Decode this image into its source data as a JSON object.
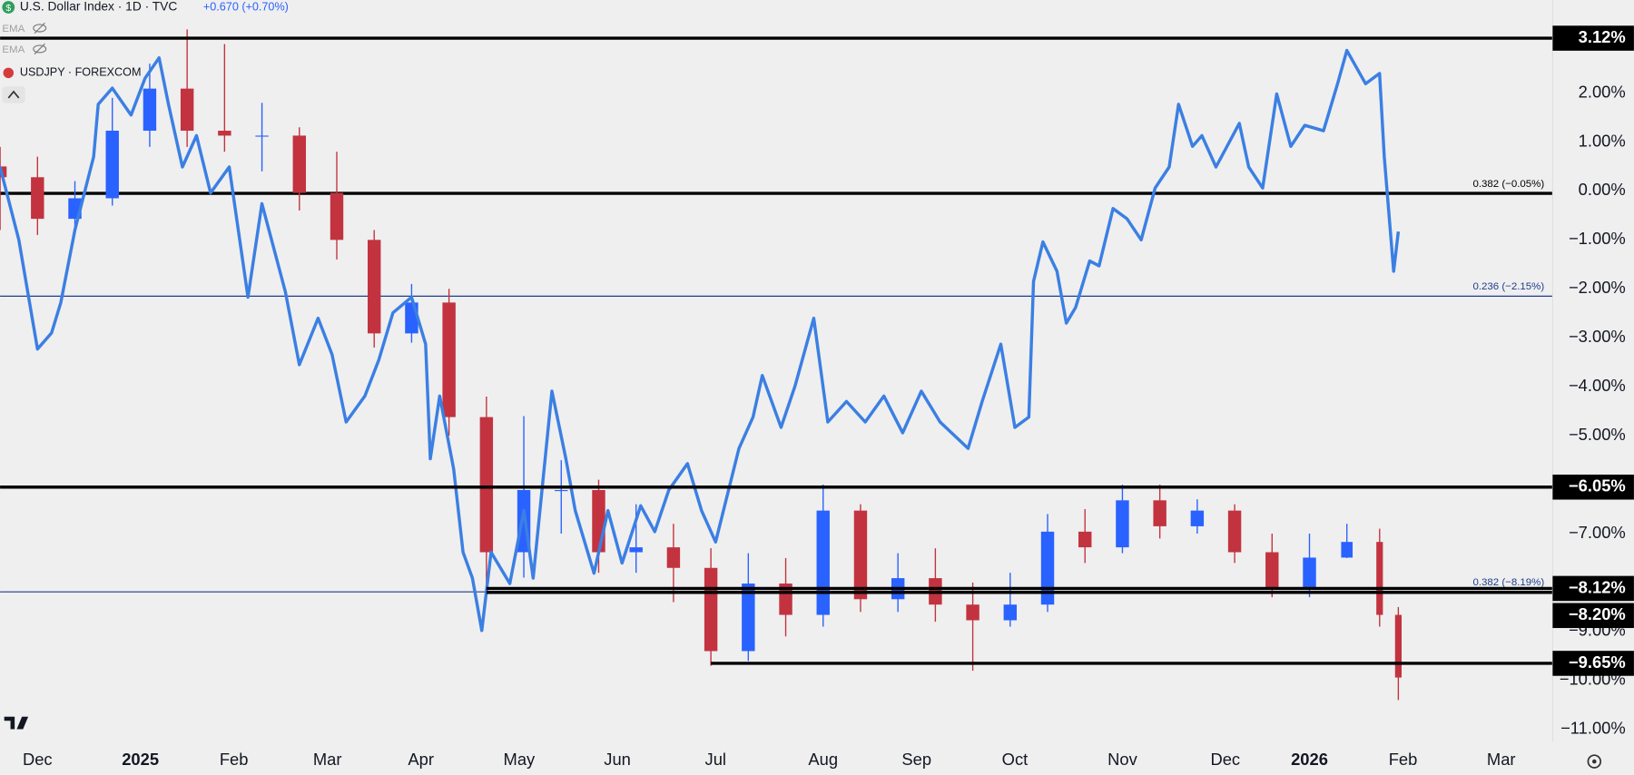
{
  "header": {
    "change": "+0.670 (+0.70%)",
    "indicators": [
      "EMA",
      "EMA"
    ]
  },
  "chart_data": {
    "type": "candlestick",
    "xlim": [
      -8,
      324
    ],
    "ylim": [
      -11.25,
      3.9
    ],
    "xticks": [
      {
        "value": 0,
        "label": "Dec"
      },
      {
        "value": 22,
        "label": "2025"
      },
      {
        "value": 42,
        "label": "Feb"
      },
      {
        "value": 62,
        "label": "Mar"
      },
      {
        "value": 82,
        "label": "Apr"
      },
      {
        "value": 103,
        "label": "May"
      },
      {
        "value": 124,
        "label": "Jun"
      },
      {
        "value": 145,
        "label": "Jul"
      },
      {
        "value": 168,
        "label": "Aug"
      },
      {
        "value": 188,
        "label": "Sep"
      },
      {
        "value": 209,
        "label": "Oct"
      },
      {
        "value": 232,
        "label": "Nov"
      },
      {
        "value": 254,
        "label": "Dec"
      },
      {
        "value": 272,
        "label": "2026"
      },
      {
        "value": 292,
        "label": "Feb"
      },
      {
        "value": 313,
        "label": "Mar"
      }
    ],
    "yticks": [
      {
        "value": 2,
        "label": "2.00%"
      },
      {
        "value": 1,
        "label": "1.00%"
      },
      {
        "value": 0,
        "label": "0.00%"
      },
      {
        "value": -1,
        "label": "−1.00%"
      },
      {
        "value": -2,
        "label": "−2.00%"
      },
      {
        "value": -3,
        "label": "−3.00%"
      },
      {
        "value": -4,
        "label": "−4.00%"
      },
      {
        "value": -5,
        "label": "−5.00%"
      },
      {
        "value": -7,
        "label": "−7.00%"
      },
      {
        "value": -9,
        "label": "−9.00%"
      },
      {
        "value": -10,
        "label": "−10.00%"
      },
      {
        "value": -11,
        "label": "−11.00%"
      }
    ],
    "series": [
      {
        "name": "U.S. Dollar Index · 1D · TVC",
        "up_color": "#2962ff",
        "down_color": "#c2333f",
        "x": [
          -8,
          0,
          8,
          16,
          24,
          32,
          40,
          48,
          56,
          64,
          72,
          80,
          88,
          96,
          104,
          112,
          120,
          128,
          136,
          144,
          152,
          160,
          168,
          176,
          184,
          192,
          200,
          208,
          216,
          224,
          232,
          240,
          248,
          256,
          264,
          272,
          280,
          287,
          291
        ],
        "open": [
          0.5,
          0.28,
          -0.57,
          -0.15,
          1.23,
          2.09,
          1.23,
          1.13,
          1.13,
          -0.04,
          -1.0,
          -2.91,
          -2.28,
          -4.62,
          -7.38,
          -6.11,
          -6.11,
          -7.38,
          -7.28,
          -7.7,
          -9.4,
          -8.02,
          -8.66,
          -6.53,
          -8.34,
          -7.91,
          -8.45,
          -8.77,
          -8.45,
          -6.96,
          -7.28,
          -6.32,
          -6.85,
          -6.53,
          -7.38,
          -8.13,
          -7.49,
          -7.17,
          -8.66
        ],
        "high": [
          0.9,
          0.7,
          0.2,
          1.9,
          2.6,
          3.3,
          3.0,
          1.8,
          1.3,
          0.8,
          -0.8,
          -1.9,
          -2.0,
          -4.2,
          -4.6,
          -5.5,
          -5.9,
          -6.4,
          -6.8,
          -7.3,
          -7.4,
          -7.5,
          -6.0,
          -6.4,
          -7.4,
          -7.3,
          -8.0,
          -7.8,
          -6.6,
          -6.5,
          -6.0,
          -6.0,
          -6.3,
          -6.4,
          -7.0,
          -7.0,
          -6.8,
          -6.9,
          -8.5
        ],
        "low": [
          -0.8,
          -0.9,
          -0.8,
          -0.3,
          0.9,
          0.9,
          0.8,
          0.4,
          -0.4,
          -1.4,
          -3.2,
          -3.1,
          -5.0,
          -8.2,
          -7.9,
          -7.0,
          -7.8,
          -7.8,
          -8.4,
          -9.7,
          -9.6,
          -9.1,
          -8.9,
          -8.6,
          -8.6,
          -8.8,
          -9.8,
          -8.9,
          -8.6,
          -7.6,
          -7.4,
          -7.1,
          -7.0,
          -7.6,
          -8.3,
          -8.3,
          -7.5,
          -8.9,
          -10.4
        ],
        "close": [
          0.28,
          -0.57,
          -0.15,
          1.23,
          2.09,
          1.23,
          1.13,
          1.13,
          -0.04,
          -1.0,
          -2.91,
          -2.28,
          -4.62,
          -7.38,
          -6.11,
          -6.11,
          -7.38,
          -7.28,
          -7.7,
          -9.4,
          -8.02,
          -8.66,
          -6.53,
          -8.34,
          -7.91,
          -8.45,
          -8.77,
          -8.45,
          -6.96,
          -7.28,
          -6.32,
          -6.85,
          -6.53,
          -7.38,
          -8.13,
          -7.49,
          -7.17,
          -8.66,
          -9.94
        ]
      },
      {
        "name": "USDJPY · FOREXCOM",
        "type": "line",
        "color": "#3b7fe3",
        "x": [
          -8,
          -4,
          0,
          3,
          5,
          8,
          12,
          13,
          16,
          20,
          23,
          26,
          28,
          31,
          34,
          37,
          41,
          45,
          48,
          53,
          56,
          60,
          63,
          66,
          70,
          73,
          76,
          80,
          83,
          84,
          86,
          89,
          91,
          93,
          95,
          97,
          101,
          104,
          106,
          110,
          113,
          115,
          119,
          122,
          125,
          129,
          132,
          135,
          139,
          142,
          145,
          150,
          153,
          155,
          159,
          162,
          166,
          169,
          173,
          177,
          181,
          185,
          189,
          193,
          199,
          202,
          206,
          209,
          212,
          213,
          215,
          218,
          220,
          222,
          225,
          227,
          230,
          233,
          236,
          239,
          242,
          244,
          247,
          249,
          252,
          257,
          259,
          262,
          265,
          268,
          271,
          275,
          278,
          280,
          284,
          287,
          288,
          290,
          291
        ],
        "values": [
          0.49,
          -1.0,
          -3.23,
          -2.9,
          -2.28,
          -0.8,
          0.7,
          1.77,
          2.1,
          1.55,
          2.3,
          2.72,
          1.77,
          0.49,
          1.13,
          -0.04,
          0.49,
          -2.17,
          -0.26,
          -2.06,
          -3.55,
          -2.6,
          -3.34,
          -4.72,
          -4.19,
          -3.45,
          -2.49,
          -2.17,
          -3.13,
          -5.47,
          -4.19,
          -5.68,
          -7.38,
          -7.91,
          -8.98,
          -7.38,
          -8.02,
          -6.53,
          -7.91,
          -4.09,
          -5.47,
          -6.53,
          -7.81,
          -6.53,
          -7.6,
          -6.43,
          -6.96,
          -6.11,
          -5.57,
          -6.53,
          -7.17,
          -5.26,
          -4.62,
          -3.77,
          -4.83,
          -3.98,
          -2.6,
          -4.72,
          -4.3,
          -4.72,
          -4.19,
          -4.94,
          -4.09,
          -4.72,
          -5.26,
          -4.3,
          -3.13,
          -4.83,
          -4.62,
          -1.85,
          -1.04,
          -1.64,
          -2.7,
          -2.38,
          -1.43,
          -1.53,
          -0.36,
          -0.57,
          -1.0,
          0.06,
          0.49,
          1.77,
          0.91,
          1.13,
          0.49,
          1.38,
          0.49,
          0.06,
          1.98,
          0.91,
          1.34,
          1.23,
          2.19,
          2.87,
          2.19,
          2.4,
          0.7,
          -1.64,
          -0.83
        ]
      }
    ],
    "levels": [
      {
        "value": 3.12,
        "label": "3.12%",
        "from": -8
      },
      {
        "value": -6.05,
        "label": "−6.05%",
        "from": -8
      },
      {
        "value": -8.12,
        "label": "−8.12%",
        "from": 96
      },
      {
        "value": -8.2,
        "label": "−8.20%",
        "from": 96
      },
      {
        "value": -9.65,
        "label": "−9.65%",
        "from": 144
      }
    ],
    "fib_levels": [
      {
        "value": -0.05,
        "label": "0.382 (−0.05%)",
        "color": "#000000",
        "line_width": 3
      },
      {
        "value": -2.15,
        "label": "0.236 (−2.15%)",
        "color": "#1f3c8f",
        "line_width": 1
      },
      {
        "value": -8.19,
        "label": "0.382 (−8.19%)",
        "color": "#1f3c8f",
        "line_width": 1
      }
    ]
  }
}
